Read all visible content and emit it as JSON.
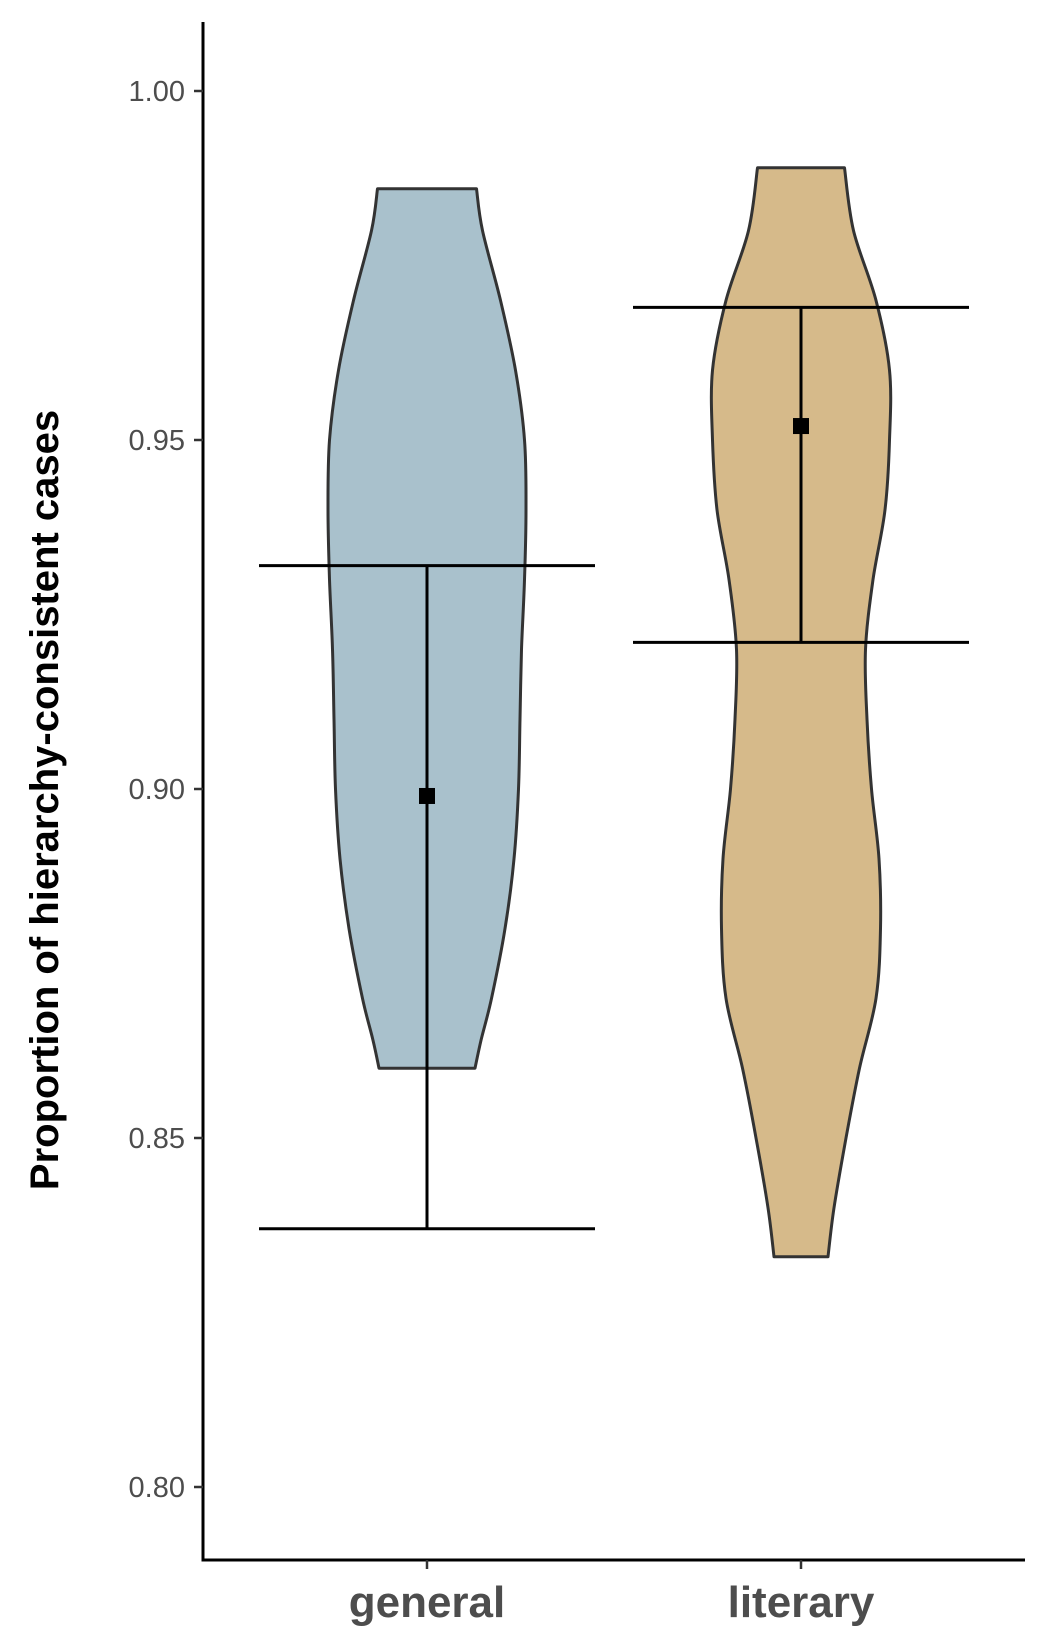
{
  "chart_data": {
    "type": "violin",
    "title": "",
    "xlabel": "",
    "ylabel": "Proportion of hierarchy-consistent cases",
    "ylim": [
      0.79,
      1.01
    ],
    "yticks": [
      "0.80",
      "0.85",
      "0.90",
      "0.95",
      "1.00"
    ],
    "grid": false,
    "legend": "none",
    "categories": [
      "general",
      "literary"
    ],
    "series": [
      {
        "category": "general",
        "fill": "#a9c1cc",
        "min": 0.86,
        "max": 0.986,
        "mean": 0.899,
        "ci_low": 0.837,
        "ci_high": 0.932,
        "density": [
          [
            0.86,
            0.32
          ],
          [
            0.864,
            0.36
          ],
          [
            0.87,
            0.43
          ],
          [
            0.88,
            0.52
          ],
          [
            0.89,
            0.58
          ],
          [
            0.9,
            0.61
          ],
          [
            0.91,
            0.62
          ],
          [
            0.92,
            0.63
          ],
          [
            0.93,
            0.65
          ],
          [
            0.94,
            0.66
          ],
          [
            0.95,
            0.65
          ],
          [
            0.96,
            0.59
          ],
          [
            0.97,
            0.49
          ],
          [
            0.98,
            0.37
          ],
          [
            0.986,
            0.33
          ]
        ]
      },
      {
        "category": "literary",
        "fill": "#d6ba8a",
        "min": 0.833,
        "max": 0.989,
        "mean": 0.952,
        "ci_low": 0.921,
        "ci_high": 0.969,
        "density": [
          [
            0.833,
            0.18
          ],
          [
            0.84,
            0.22
          ],
          [
            0.85,
            0.3
          ],
          [
            0.86,
            0.39
          ],
          [
            0.87,
            0.5
          ],
          [
            0.88,
            0.53
          ],
          [
            0.89,
            0.52
          ],
          [
            0.9,
            0.47
          ],
          [
            0.91,
            0.44
          ],
          [
            0.92,
            0.43
          ],
          [
            0.93,
            0.48
          ],
          [
            0.94,
            0.56
          ],
          [
            0.95,
            0.59
          ],
          [
            0.96,
            0.59
          ],
          [
            0.97,
            0.5
          ],
          [
            0.98,
            0.35
          ],
          [
            0.989,
            0.29
          ]
        ]
      }
    ]
  }
}
